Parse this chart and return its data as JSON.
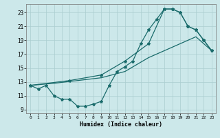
{
  "xlabel": "Humidex (Indice chaleur)",
  "bg_color": "#cce8ea",
  "grid_color": "#aacdd0",
  "line_color": "#1a6b6b",
  "xlim": [
    -0.5,
    23.5
  ],
  "ylim": [
    8.5,
    24.2
  ],
  "xticks": [
    0,
    1,
    2,
    3,
    4,
    5,
    6,
    7,
    8,
    9,
    10,
    11,
    12,
    13,
    14,
    15,
    16,
    17,
    18,
    19,
    20,
    21,
    22,
    23
  ],
  "yticks": [
    9,
    11,
    13,
    15,
    17,
    19,
    21,
    23
  ],
  "curve_upper_x": [
    0,
    1,
    2,
    3,
    4,
    5,
    6,
    7,
    8,
    9,
    10,
    11,
    12,
    13,
    14,
    15,
    16,
    17,
    18,
    19,
    20,
    21,
    22,
    23
  ],
  "curve_upper_y": [
    12.5,
    12.0,
    12.5,
    11.0,
    10.5,
    10.5,
    9.5,
    9.5,
    9.8,
    10.2,
    12.5,
    14.5,
    15.2,
    16.0,
    18.5,
    20.5,
    22.0,
    23.5,
    23.5,
    23.0,
    21.0,
    20.5,
    19.0,
    17.5
  ],
  "curve_smooth_x": [
    0,
    5,
    9,
    12,
    15,
    17,
    18,
    19,
    20,
    21,
    22,
    23
  ],
  "curve_smooth_y": [
    12.5,
    13.2,
    14.0,
    16.0,
    18.5,
    23.5,
    23.5,
    23.0,
    21.0,
    20.5,
    19.0,
    17.5
  ],
  "curve_diag_x": [
    0,
    3,
    6,
    9,
    12,
    15,
    17,
    18,
    19,
    20,
    21,
    22,
    23
  ],
  "curve_diag_y": [
    12.5,
    12.8,
    13.2,
    13.6,
    14.5,
    16.5,
    17.5,
    18.0,
    18.5,
    19.0,
    19.5,
    18.5,
    17.5
  ]
}
